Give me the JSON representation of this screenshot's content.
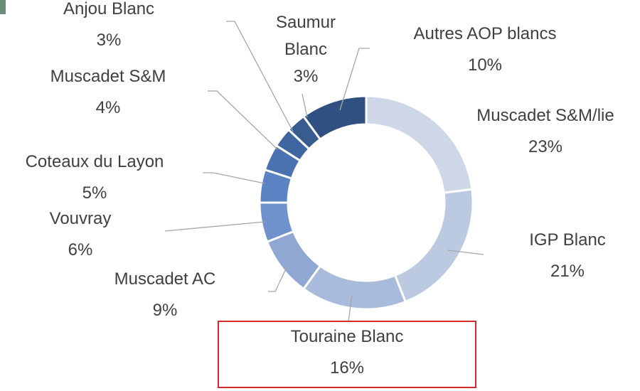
{
  "chart_data": {
    "type": "donut",
    "categories": [
      "Muscadet S&M/lie",
      "IGP Blanc",
      "Touraine Blanc",
      "Muscadet AC",
      "Vouvray",
      "Coteaux du Layon",
      "Muscadet S&M",
      "Anjou Blanc",
      "Saumur Blanc",
      "Autres AOP blancs"
    ],
    "values": [
      23,
      21,
      16,
      9,
      6,
      5,
      4,
      3,
      3,
      10
    ],
    "value_labels": [
      "23%",
      "21%",
      "16%",
      "9%",
      "6%",
      "5%",
      "4%",
      "3%",
      "3%",
      "10%"
    ],
    "colors": [
      "#cdd7e7",
      "#bccae1",
      "#a9bbda",
      "#8fa7d2",
      "#6f92cc",
      "#5a83c3",
      "#4a72b1",
      "#3f66a0",
      "#375c90",
      "#2f5080"
    ]
  }
}
